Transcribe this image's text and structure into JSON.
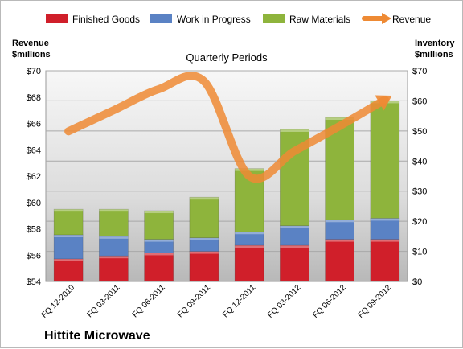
{
  "chart_data": {
    "type": "bar",
    "title": "Quarterly Periods",
    "company": "Hittite Microwave",
    "left_axis_title": [
      "Revenue",
      "$millions"
    ],
    "right_axis_title": [
      "Inventory",
      "$millions"
    ],
    "left_ylim": [
      54,
      70
    ],
    "right_ylim": [
      0,
      70
    ],
    "left_ticks": [
      "$54",
      "$56",
      "$58",
      "$60",
      "$62",
      "$64",
      "$66",
      "$68",
      "$70"
    ],
    "right_ticks": [
      "$0",
      "$10",
      "$20",
      "$30",
      "$40",
      "$50",
      "$60",
      "$70"
    ],
    "left_tick_values": [
      54,
      56,
      58,
      60,
      62,
      64,
      66,
      68,
      70
    ],
    "right_tick_values": [
      0,
      10,
      20,
      30,
      40,
      50,
      60,
      70
    ],
    "categories": [
      "FQ 12-2010",
      "FQ 03-2011",
      "FQ 06-2011",
      "FQ 09-2011",
      "FQ 12-2011",
      "FQ 03-2012",
      "FQ 06-2012",
      "FQ 09-2012"
    ],
    "stacked_series": [
      {
        "name": "Finished Goods",
        "color": "#d01f2a",
        "values": [
          7.5,
          8.5,
          9.5,
          10,
          12,
          12,
          14,
          14
        ]
      },
      {
        "name": "Work in Progress",
        "color": "#5a82c4",
        "values": [
          8,
          6.5,
          4.5,
          4.5,
          4.5,
          6.5,
          6.5,
          7
        ]
      },
      {
        "name": "Raw Materials",
        "color": "#8eb43c",
        "values": [
          8.5,
          9,
          9.5,
          13.5,
          21,
          32,
          34,
          39
        ]
      }
    ],
    "line_series": {
      "name": "Revenue",
      "axis": "left",
      "color": "#ee8a34",
      "values": [
        65.4,
        67,
        68.6,
        69.2,
        62,
        63.9,
        65.8,
        67.8
      ]
    },
    "grid": true,
    "legend_position": "top"
  }
}
